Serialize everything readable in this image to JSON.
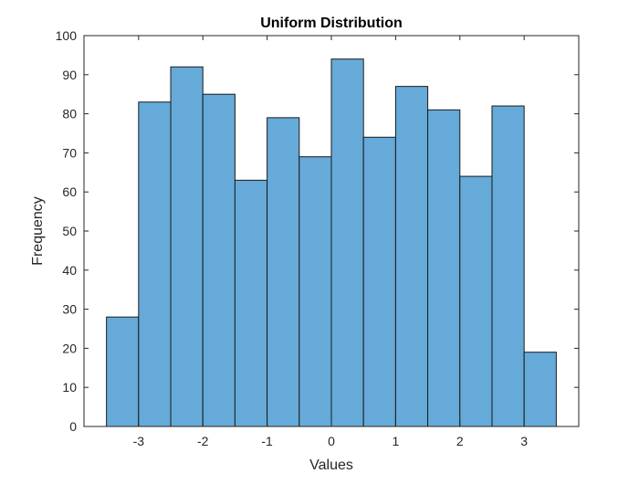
{
  "chart_data": {
    "type": "bar",
    "title": "Uniform Distribution",
    "xlabel": "Values",
    "ylabel": "Frequency",
    "bin_edges": [
      -3.5,
      -3.0,
      -2.5,
      -2.0,
      -1.5,
      -1.0,
      -0.5,
      0.0,
      0.5,
      1.0,
      1.5,
      2.0,
      2.5,
      3.0,
      3.5
    ],
    "values": [
      28,
      83,
      92,
      85,
      63,
      79,
      69,
      94,
      74,
      87,
      81,
      64,
      82,
      19
    ],
    "xlim": [
      -3.85,
      3.85
    ],
    "ylim": [
      0,
      100
    ],
    "xticks": [
      -3,
      -2,
      -1,
      0,
      1,
      2,
      3
    ],
    "xtick_labels": [
      "-3",
      "-2",
      "-1",
      "0",
      "1",
      "2",
      "3"
    ],
    "yticks": [
      0,
      10,
      20,
      30,
      40,
      50,
      60,
      70,
      80,
      90,
      100
    ],
    "ytick_labels": [
      "0",
      "10",
      "20",
      "30",
      "40",
      "50",
      "60",
      "70",
      "80",
      "90",
      "100"
    ],
    "grid": false,
    "bar_color": "#66aad9",
    "edge_color": "#1a1a1a"
  }
}
